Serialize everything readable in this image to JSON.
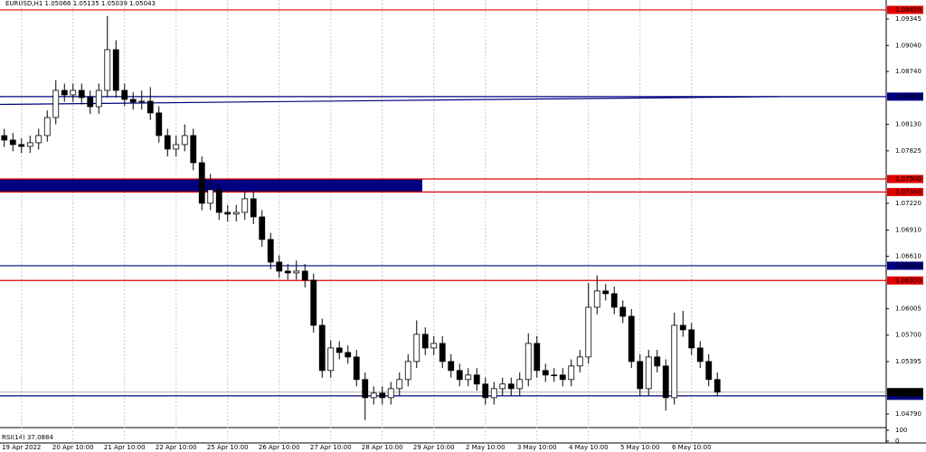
{
  "chart_data": {
    "type": "candlestick",
    "title": "EURUSD,H1  1.05066 1.05135 1.05039 1.05043",
    "categories": [
      null,
      null,
      "19 Apr 2022",
      null,
      null,
      null,
      null,
      null,
      "20 Apr 10:00",
      null,
      null,
      null,
      null,
      null,
      "21 Apr 10:00",
      null,
      null,
      null,
      null,
      null,
      "22 Apr 10:00",
      null,
      null,
      null,
      null,
      null,
      "25 Apr 10:00",
      null,
      null,
      null,
      null,
      null,
      "26 Apr 10:00",
      null,
      null,
      null,
      null,
      null,
      "27 Apr 10:00",
      null,
      null,
      null,
      null,
      null,
      "28 Apr 10:00",
      null,
      null,
      null,
      null,
      null,
      "29 Apr 10:00",
      null,
      null,
      null,
      null,
      null,
      "2 May 10:00",
      null,
      null,
      null,
      null,
      null,
      "3 May 10:00",
      null,
      null,
      null,
      null,
      null,
      "4 May 10:00",
      null,
      null,
      null,
      null,
      null,
      "5 May 10:00",
      null,
      null,
      null,
      null,
      null,
      "6 May 10:00",
      null,
      null,
      null
    ],
    "open": [
      1.08,
      1.07949,
      1.07897,
      1.07876,
      1.07918,
      1.08001,
      1.08209,
      1.08522,
      1.0847,
      1.08522,
      1.08439,
      1.08334,
      1.08522,
      1.08991,
      1.08522,
      1.08418,
      1.08387,
      1.08397,
      1.08262,
      1.08001,
      1.07845,
      1.07897,
      1.08001,
      1.07688,
      1.0722,
      1.07376,
      1.07115,
      1.07095,
      1.07115,
      1.07272,
      1.07063,
      1.06803,
      1.06542,
      1.06438,
      1.06417,
      1.06438,
      1.06334,
      1.05813,
      1.05292,
      1.05552,
      1.055,
      1.05448,
      1.05188,
      1.04979,
      1.05031,
      1.04979,
      1.05083,
      1.05188,
      1.05396,
      1.05709,
      1.05552,
      1.05604,
      1.05396,
      1.05292,
      1.05188,
      1.0524,
      1.05136,
      1.04979,
      1.05083,
      1.05136,
      1.05083,
      1.05188,
      1.05604,
      1.05292,
      1.0524,
      1.0524,
      1.05188,
      1.05344,
      1.05448,
      1.06021,
      1.06209,
      1.06178,
      1.06021,
      1.05917,
      1.05396,
      1.05083,
      1.05448,
      1.05344,
      1.04979,
      1.05813,
      1.05761,
      1.05552,
      1.05396,
      1.05188
    ],
    "high": [
      1.0808,
      1.0803,
      1.0797,
      1.08,
      1.0808,
      1.0829,
      1.0864,
      1.086,
      1.086,
      1.086,
      1.0852,
      1.086,
      1.0938,
      1.091,
      1.086,
      1.085,
      1.0852,
      1.0856,
      1.0834,
      1.0808,
      1.08,
      1.0813,
      1.0808,
      1.0776,
      1.0756,
      1.0745,
      1.072,
      1.072,
      1.0736,
      1.0735,
      1.0714,
      1.0688,
      1.0662,
      1.0652,
      1.0656,
      1.0652,
      1.0641,
      1.0589,
      1.0564,
      1.0563,
      1.0558,
      1.0553,
      1.0527,
      1.0511,
      1.0511,
      1.0516,
      1.0527,
      1.0548,
      1.0587,
      1.0579,
      1.0569,
      1.0569,
      1.0548,
      1.0537,
      1.0532,
      1.0532,
      1.0521,
      1.0516,
      1.0521,
      1.0521,
      1.0527,
      1.0572,
      1.0569,
      1.0537,
      1.0532,
      1.0532,
      1.0542,
      1.0553,
      1.063,
      1.0639,
      1.0629,
      1.0626,
      1.061,
      1.06,
      1.0548,
      1.0553,
      1.0553,
      1.0542,
      1.0596,
      1.0598,
      1.0584,
      1.0563,
      1.0548,
      1.0527
    ],
    "low": [
      1.0787,
      1.0782,
      1.078,
      1.078,
      1.0784,
      1.0793,
      1.0813,
      1.0839,
      1.0839,
      1.0836,
      1.0825,
      1.0825,
      1.0844,
      1.0844,
      1.0834,
      1.083,
      1.083,
      1.0818,
      1.0792,
      1.0776,
      1.0776,
      1.0782,
      1.076,
      1.0714,
      1.0714,
      1.0703,
      1.0701,
      1.0701,
      1.0703,
      1.0698,
      1.0672,
      1.0646,
      1.0636,
      1.0634,
      1.0634,
      1.0625,
      1.0573,
      1.0521,
      1.0521,
      1.0542,
      1.0537,
      1.0511,
      1.0472,
      1.049,
      1.049,
      1.049,
      1.05,
      1.0511,
      1.0532,
      1.0547,
      1.0547,
      1.0532,
      1.0521,
      1.0511,
      1.0511,
      1.0506,
      1.049,
      1.049,
      1.05,
      1.05,
      1.05,
      1.0511,
      1.0521,
      1.0516,
      1.0516,
      1.0511,
      1.0511,
      1.0527,
      1.0537,
      1.0594,
      1.061,
      1.0594,
      1.0584,
      1.0532,
      1.05,
      1.05,
      1.0527,
      1.0483,
      1.049,
      1.0568,
      1.0547,
      1.0532,
      1.0511,
      1.05
    ],
    "close": [
      1.07949,
      1.07897,
      1.07876,
      1.07918,
      1.08001,
      1.08209,
      1.08522,
      1.0847,
      1.08522,
      1.08439,
      1.08334,
      1.08522,
      1.08991,
      1.08522,
      1.08418,
      1.08387,
      1.08397,
      1.08262,
      1.08001,
      1.07845,
      1.07897,
      1.08001,
      1.07688,
      1.0722,
      1.07376,
      1.07115,
      1.07095,
      1.07115,
      1.07272,
      1.07063,
      1.06803,
      1.06542,
      1.06438,
      1.06417,
      1.06438,
      1.06334,
      1.05813,
      1.05292,
      1.05552,
      1.055,
      1.05448,
      1.05188,
      1.04979,
      1.05031,
      1.04979,
      1.05083,
      1.05188,
      1.05396,
      1.05709,
      1.05552,
      1.05604,
      1.05396,
      1.05292,
      1.05188,
      1.0524,
      1.05136,
      1.04979,
      1.05083,
      1.05136,
      1.05083,
      1.05188,
      1.05604,
      1.05292,
      1.0524,
      1.0524,
      1.05188,
      1.05344,
      1.05448,
      1.06021,
      1.06209,
      1.06178,
      1.06021,
      1.05917,
      1.05396,
      1.05083,
      1.05448,
      1.05344,
      1.04979,
      1.05813,
      1.05761,
      1.05552,
      1.05396,
      1.05188,
      1.05043
    ],
    "ylim": [
      1.04665,
      1.09564
    ],
    "yticks": [
      {
        "value": 1.09345,
        "label": "1.09345"
      },
      {
        "value": 1.0904,
        "label": "1.09040"
      },
      {
        "value": 1.0874,
        "label": "1.08740"
      },
      {
        "value": 1.0813,
        "label": "1.08130"
      },
      {
        "value": 1.07825,
        "label": "1.07825"
      },
      {
        "value": 1.0722,
        "label": "1.07220"
      },
      {
        "value": 1.0691,
        "label": "1.06910"
      },
      {
        "value": 1.0661,
        "label": "1.06610"
      },
      {
        "value": 1.06005,
        "label": "1.06005"
      },
      {
        "value": 1.057,
        "label": "1.05700"
      },
      {
        "value": 1.05395,
        "label": "1.05395"
      },
      {
        "value": 1.0479,
        "label": "1.04790"
      }
    ],
    "grid": true,
    "levels": [
      {
        "value": 1.0945,
        "label": "1.09450",
        "color": "#e00000"
      },
      {
        "value": 1.0845,
        "label": "1.08450",
        "color": "#000080"
      },
      {
        "value": 1.075,
        "label": "1.07500",
        "color": "#e00000"
      },
      {
        "value": 1.0735,
        "label": "1.07350",
        "color": "#e00000"
      },
      {
        "value": 1.065,
        "label": "1.06500",
        "color": "#000080"
      },
      {
        "value": 1.0633,
        "label": "1.06330",
        "color": "#e00000"
      },
      {
        "value": 1.05,
        "label": "1.05000",
        "color": "#000080"
      }
    ],
    "zone": {
      "low": 1.0735,
      "high": 1.075,
      "color": "#000080"
    },
    "trendline": {
      "start": 1.0836,
      "end": 1.0845,
      "color": "#000080"
    },
    "last_price": {
      "value": 1.05043,
      "label": "1.05043"
    },
    "rsi_panel": {
      "title": "RSI(14) 37.0884",
      "ylim": [
        0,
        100
      ],
      "yticks": [
        0,
        100
      ]
    }
  }
}
